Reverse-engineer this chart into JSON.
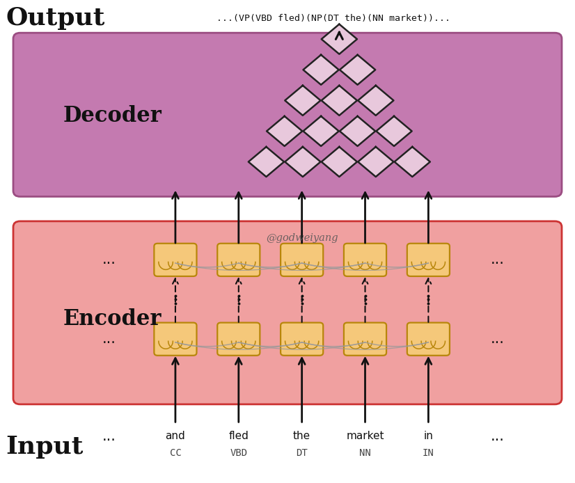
{
  "output_label": "Output",
  "input_label": "Input",
  "decoder_label": "Decoder",
  "encoder_label": "Encoder",
  "output_text": "...(VP(VBD fled)(NP(DT the)(NN market))...",
  "watermark": "@godweiyang",
  "input_words": [
    "and",
    "fled",
    "the",
    "market",
    "in"
  ],
  "input_tags": [
    "CC",
    "VBD",
    "DT",
    "NN",
    "IN"
  ],
  "decoder_bg": "#c47ab0",
  "decoder_border": "#9b4d82",
  "encoder_bg": "#f0a0a0",
  "encoder_border": "#cc3333",
  "cell_fill": "#f5c87a",
  "cell_border": "#b8860b",
  "diamond_fill": "#e8c8dc",
  "diamond_border": "#222222",
  "arrow_color": "#111111",
  "curve_color": "#999999",
  "text_color": "#111111",
  "fig_bg": "#ffffff",
  "fig_width": 8.26,
  "fig_height": 6.94
}
